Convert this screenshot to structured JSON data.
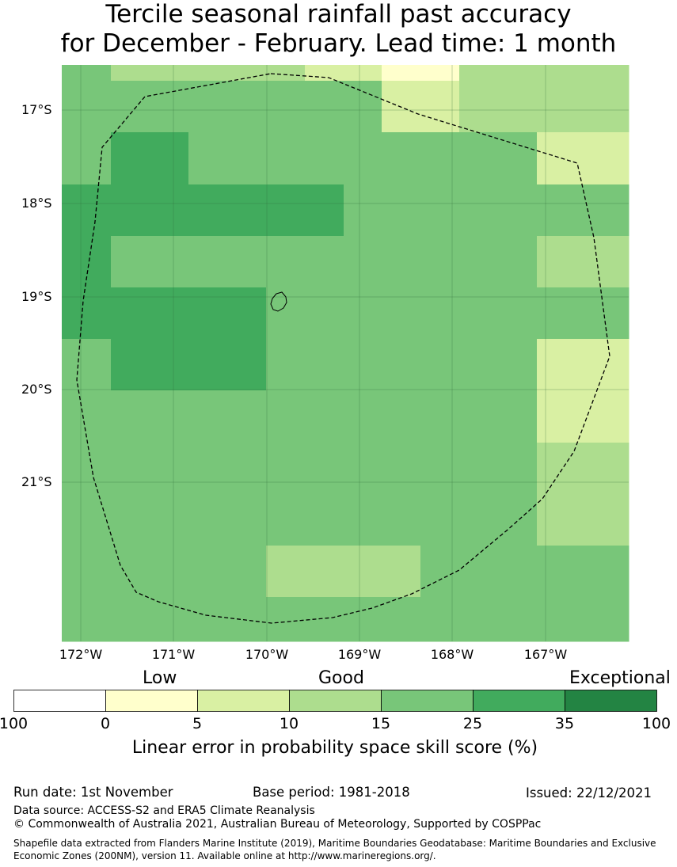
{
  "title": {
    "line1": "Tercile seasonal rainfall past accuracy",
    "line2": "for December - February. Lead time: 1 month"
  },
  "map": {
    "lat_ticks": [
      "17°S",
      "18°S",
      "19°S",
      "20°S",
      "21°S"
    ],
    "lon_ticks": [
      "172°W",
      "171°W",
      "170°W",
      "169°W",
      "168°W",
      "167°W"
    ],
    "boundary_style": "dashed",
    "grid": true,
    "cells": [
      {
        "row": 0,
        "cols": [
          25,
          10,
          10,
          10,
          10,
          10,
          5,
          5,
          0,
          0,
          10,
          10,
          10,
          10
        ]
      },
      {
        "row": 1,
        "cols": [
          25,
          25,
          25,
          25,
          25,
          25,
          25,
          25,
          5,
          5,
          10,
          10,
          10,
          10
        ]
      },
      {
        "row": 2,
        "cols": [
          25,
          35,
          35,
          25,
          25,
          25,
          25,
          25,
          25,
          25,
          25,
          25,
          5,
          5
        ]
      },
      {
        "row": 3,
        "cols": [
          35,
          35,
          35,
          35,
          35,
          35,
          35,
          25,
          25,
          25,
          25,
          25,
          25,
          25
        ]
      },
      {
        "row": 4,
        "cols": [
          35,
          25,
          25,
          25,
          25,
          25,
          25,
          25,
          25,
          25,
          25,
          25,
          10,
          10
        ]
      },
      {
        "row": 5,
        "cols": [
          35,
          35,
          35,
          35,
          35,
          25,
          25,
          25,
          25,
          25,
          25,
          25,
          25,
          25
        ]
      },
      {
        "row": 6,
        "cols": [
          25,
          35,
          35,
          35,
          35,
          25,
          25,
          25,
          25,
          25,
          25,
          25,
          5,
          5
        ]
      },
      {
        "row": 7,
        "cols": [
          25,
          25,
          25,
          25,
          25,
          25,
          25,
          25,
          25,
          25,
          25,
          25,
          5,
          5
        ]
      },
      {
        "row": 8,
        "cols": [
          25,
          25,
          25,
          25,
          25,
          25,
          25,
          25,
          25,
          25,
          25,
          25,
          10,
          10
        ]
      },
      {
        "row": 9,
        "cols": [
          25,
          25,
          25,
          25,
          25,
          25,
          25,
          25,
          25,
          25,
          25,
          25,
          10,
          10
        ]
      },
      {
        "row": 10,
        "cols": [
          25,
          25,
          25,
          25,
          25,
          10,
          10,
          10,
          10,
          25,
          25,
          25,
          25,
          25
        ]
      },
      {
        "row": 11,
        "cols": [
          25,
          25,
          25,
          25,
          25,
          25,
          25,
          25,
          25,
          25,
          25,
          25,
          25,
          25
        ]
      }
    ]
  },
  "legend": {
    "categories": [
      "Low",
      "Good",
      "Exceptional"
    ],
    "ticks": [
      "100",
      "0",
      "5",
      "10",
      "15",
      "25",
      "35",
      "100"
    ],
    "colors": [
      "#ffffff",
      "#ffffcc",
      "#d9f0a3",
      "#addd8e",
      "#78c679",
      "#41ab5d",
      "#238443"
    ],
    "title": "Linear error in probability space skill score (%)"
  },
  "footer": {
    "run_date": "Run date: 1st November",
    "base_period": "Base period: 1981-2018",
    "issued": "Issued: 22/12/2021",
    "data_source": "Data source: ACCESS-S2 and ERA5 Climate Reanalysis",
    "copyright": "© Commonwealth of Australia 2021, Australian Bureau of Meteorology, Supported by COSPPac",
    "shapefile": "Shapefile data extracted from Flanders Marine Institute (2019), Maritime Boundaries Geodatabase: Maritime Boundaries and Exclusive Economic Zones (200NM), version 11. Available online at http://www.marineregions.org/."
  }
}
